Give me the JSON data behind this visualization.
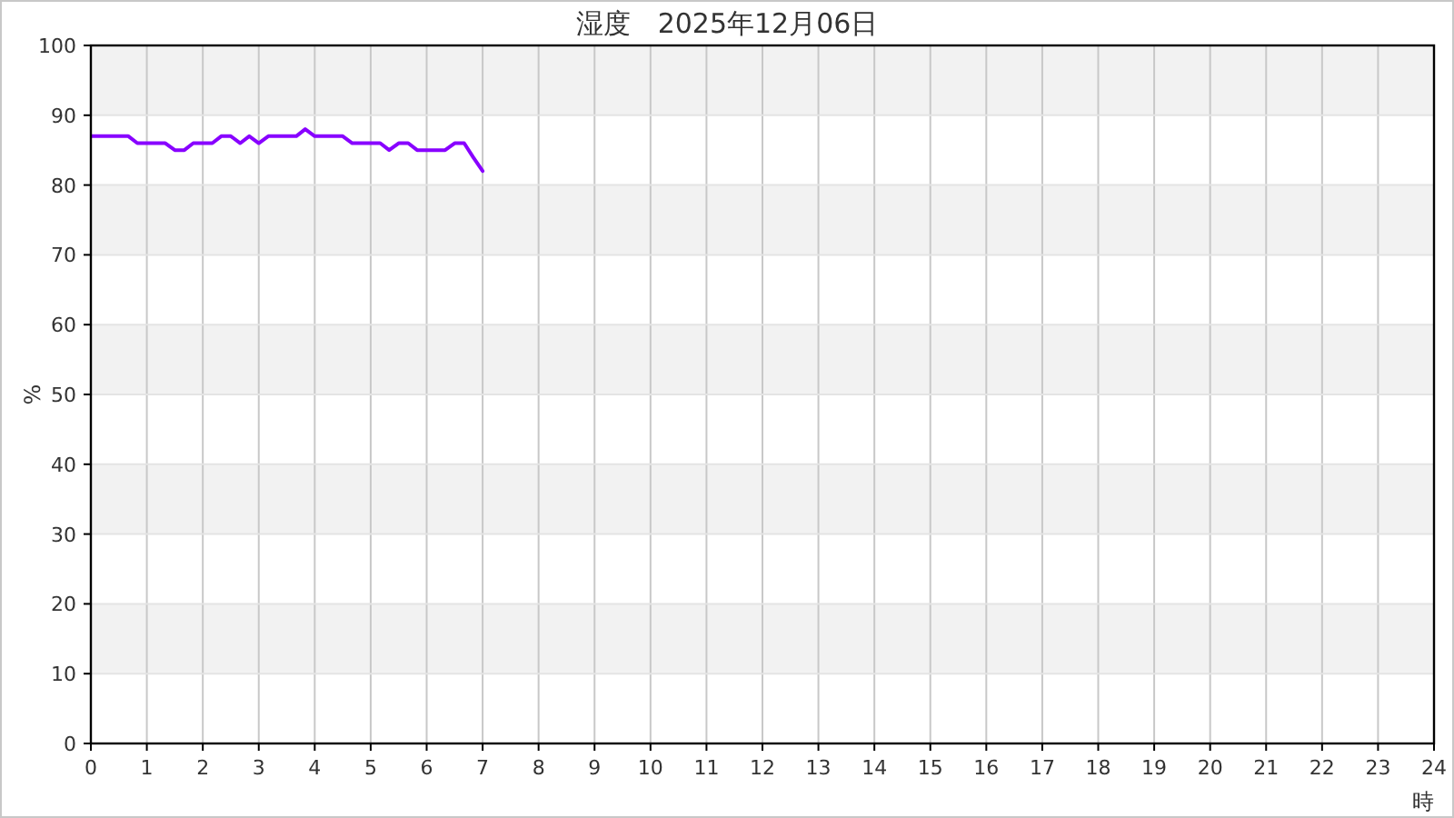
{
  "chart_data": {
    "type": "line",
    "title": "湿度　2025年12月06日",
    "xlabel": "時",
    "ylabel": "%",
    "x": [
      0,
      0.17,
      0.33,
      0.5,
      0.67,
      0.83,
      1,
      1.17,
      1.33,
      1.5,
      1.67,
      1.83,
      2,
      2.17,
      2.33,
      2.5,
      2.67,
      2.83,
      3,
      3.17,
      3.33,
      3.5,
      3.67,
      3.83,
      4,
      4.17,
      4.33,
      4.5,
      4.67,
      4.83,
      5,
      5.17,
      5.33,
      5.5,
      5.67,
      5.83,
      6,
      6.17,
      6.33,
      6.5,
      6.67,
      6.83,
      7
    ],
    "series": [
      {
        "color": "#8800ff",
        "values": [
          87,
          87,
          87,
          87,
          87,
          86,
          86,
          86,
          86,
          85,
          85,
          86,
          86,
          86,
          87,
          87,
          86,
          87,
          86,
          87,
          87,
          87,
          87,
          88,
          87,
          87,
          87,
          87,
          86,
          86,
          86,
          86,
          85,
          86,
          86,
          85,
          85,
          85,
          85,
          86,
          86,
          84,
          82
        ]
      }
    ],
    "xlim": [
      0,
      24
    ],
    "xticks": [
      0,
      1,
      2,
      3,
      4,
      5,
      6,
      7,
      8,
      9,
      10,
      11,
      12,
      13,
      14,
      15,
      16,
      17,
      18,
      19,
      20,
      21,
      22,
      23,
      24
    ],
    "ylim": [
      0,
      100
    ],
    "yticks": [
      0,
      10,
      20,
      30,
      40,
      50,
      60,
      70,
      80,
      90,
      100
    ],
    "grid": true,
    "line_style": "solid",
    "bands": [
      {
        "axis": "y",
        "from": 10,
        "to": 20,
        "color": "#f2f2f2"
      },
      {
        "axis": "y",
        "from": 30,
        "to": 40,
        "color": "#f2f2f2"
      },
      {
        "axis": "y",
        "from": 50,
        "to": 60,
        "color": "#f2f2f2"
      },
      {
        "axis": "y",
        "from": 70,
        "to": 80,
        "color": "#f2f2f2"
      },
      {
        "axis": "y",
        "from": 90,
        "to": 100,
        "color": "#f2f2f2"
      }
    ]
  }
}
